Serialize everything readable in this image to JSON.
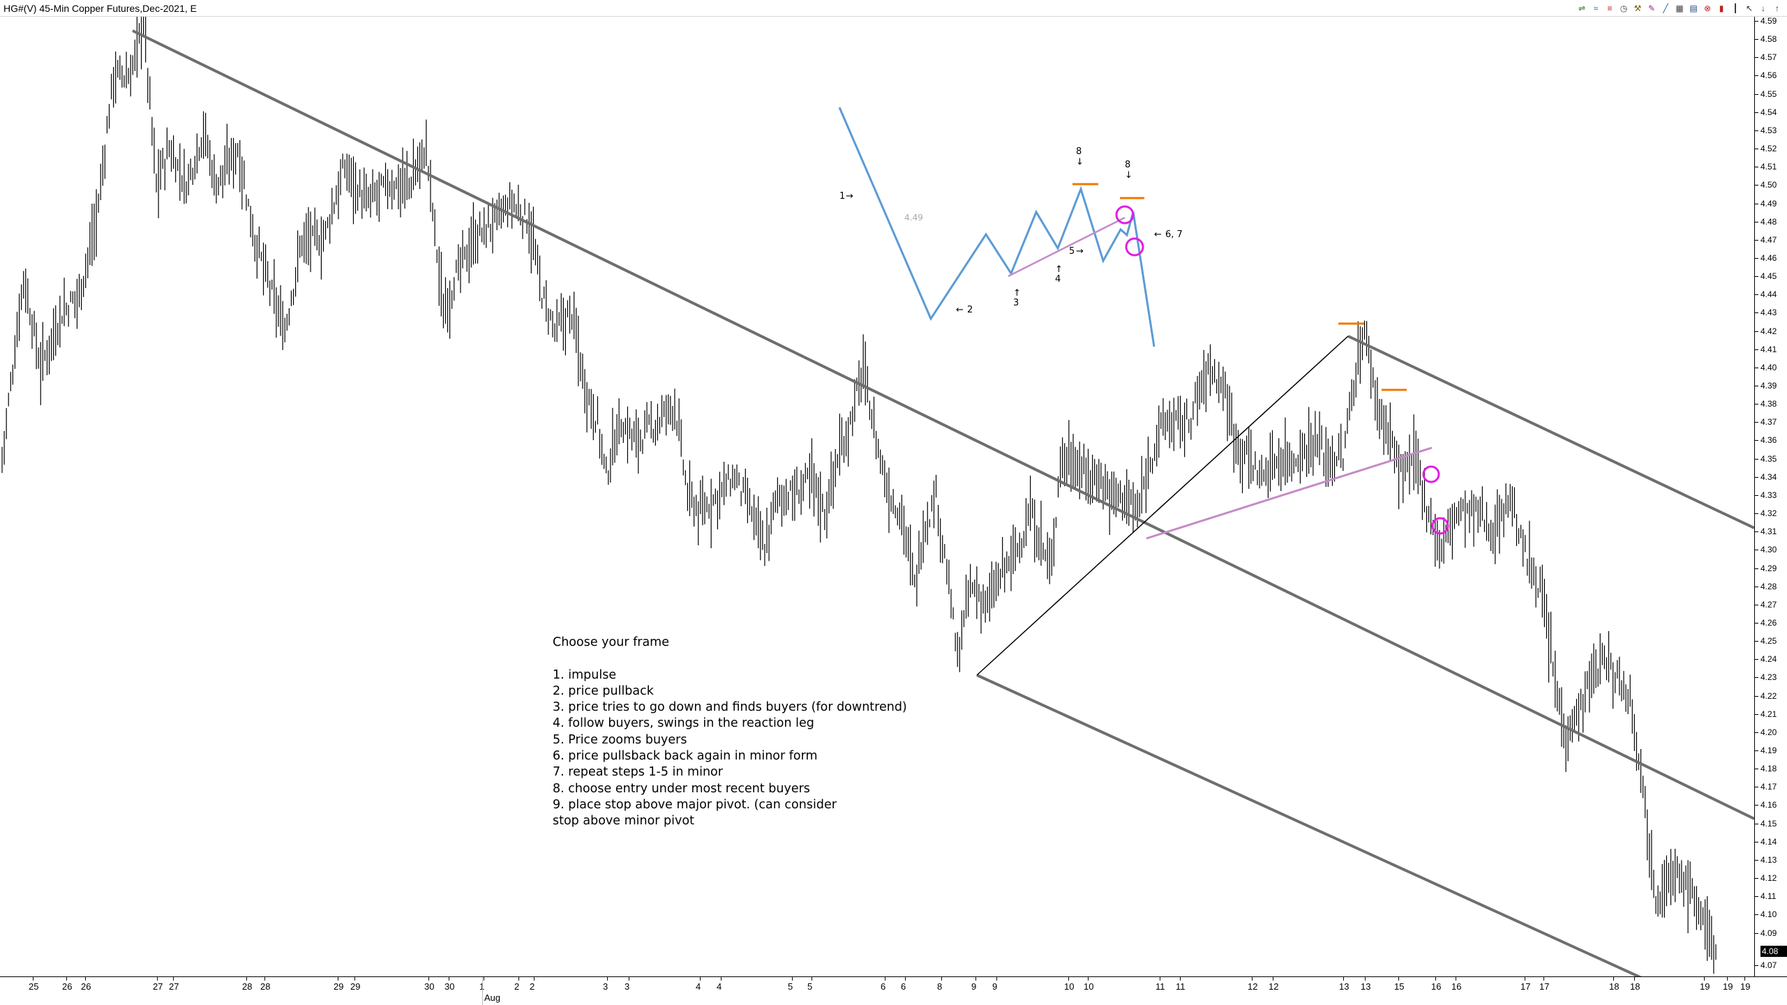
{
  "window": {
    "title": "HG#(V) 45-Min Copper Futures,Dec-2021, E"
  },
  "toolbar": {
    "icons": [
      "scale-icon",
      "waves-icon",
      "lines-icon",
      "timer-icon",
      "tools-icon",
      "pen-icon",
      "eraser-icon",
      "grid-icon",
      "text-icon",
      "delete-icon",
      "candle-icon",
      "bars-icon",
      "cursor-icon",
      "arrow-down-icon",
      "arrow-up-icon"
    ],
    "glyphs": [
      "⇌",
      "≈",
      "≡",
      "◷",
      "⚒",
      "✎",
      "╱",
      "▦",
      "▤",
      "⊗",
      "▮",
      "┃",
      "↖",
      "↓",
      "↑"
    ]
  },
  "annotations": {
    "notes": [
      "Choose your frame",
      "",
      "1. impulse",
      "2. price pullback",
      "3. price tries to go down and finds buyers (for downtrend)",
      "4. follow buyers, swings in the reaction leg",
      "5. Price zooms buyers",
      "6. price pullsback back again in minor form",
      "7. repeat steps 1-5 in minor",
      "8. choose entry under most recent buyers",
      "9. place stop above major pivot. (can consider",
      "stop above minor pivot"
    ],
    "diagram_labels": {
      "l1": "1",
      "l2": "2",
      "l3": "3",
      "l4": "4",
      "l5": "5",
      "l67": "6, 7",
      "l8a": "8",
      "l8b": "8",
      "lprice": "4.49"
    }
  },
  "colors": {
    "price_bars": "#000000",
    "trendlines": "#6e6e6e",
    "diagram": "#5b9bd5",
    "support": "#c58ac8",
    "circles": "#e020e0",
    "entry": "#f07800"
  },
  "y_axis": {
    "labels": [
      "4.59",
      "4.58",
      "4.57",
      "4.56",
      "4.55",
      "4.54",
      "4.53",
      "4.52",
      "4.51",
      "4.50",
      "4.49",
      "4.48",
      "4.47",
      "4.46",
      "4.45",
      "4.44",
      "4.43",
      "4.42",
      "4.41",
      "4.40",
      "4.39",
      "4.38",
      "4.37",
      "4.36",
      "4.35",
      "4.34",
      "4.33",
      "4.32",
      "4.31",
      "4.30",
      "4.29",
      "4.28",
      "4.27",
      "4.26",
      "4.25",
      "4.24",
      "4.23",
      "4.22",
      "4.21",
      "4.20",
      "4.19",
      "4.18",
      "4.17",
      "4.16",
      "4.15",
      "4.14",
      "4.13",
      "4.12",
      "4.11",
      "4.10",
      "4.09",
      "4.07"
    ],
    "last_price": "4.08"
  },
  "x_axis": {
    "labels": [
      "25",
      "26",
      "26",
      "27",
      "27",
      "28",
      "28",
      "29",
      "29",
      "30",
      "30",
      "1",
      "2",
      "2",
      "3",
      "3",
      "4",
      "4",
      "5",
      "5",
      "6",
      "6",
      "8",
      "9",
      "9",
      "10",
      "10",
      "11",
      "11",
      "12",
      "12",
      "13",
      "13",
      "15",
      "16",
      "16",
      "17",
      "17",
      "18",
      "18",
      "19",
      "19",
      "19"
    ],
    "month": "Aug"
  },
  "chart_data": {
    "type": "ohlc",
    "title": "HG#(V) 45-Min Copper Futures,Dec-2021, E",
    "ylim": [
      4.065,
      4.595
    ],
    "price_path": [
      [
        0,
        4.35
      ],
      [
        10,
        4.45
      ],
      [
        18,
        4.4
      ],
      [
        28,
        4.43
      ],
      [
        36,
        4.44
      ],
      [
        44,
        4.48
      ],
      [
        52,
        4.56
      ],
      [
        60,
        4.56
      ],
      [
        66,
        4.59
      ],
      [
        72,
        4.5
      ],
      [
        78,
        4.52
      ],
      [
        86,
        4.5
      ],
      [
        94,
        4.53
      ],
      [
        100,
        4.5
      ],
      [
        110,
        4.52
      ],
      [
        118,
        4.47
      ],
      [
        126,
        4.44
      ],
      [
        132,
        4.42
      ],
      [
        140,
        4.47
      ],
      [
        150,
        4.47
      ],
      [
        160,
        4.51
      ],
      [
        170,
        4.49
      ],
      [
        180,
        4.5
      ],
      [
        190,
        4.5
      ],
      [
        198,
        4.52
      ],
      [
        206,
        4.43
      ],
      [
        212,
        4.45
      ],
      [
        220,
        4.47
      ],
      [
        230,
        4.48
      ],
      [
        238,
        4.49
      ],
      [
        246,
        4.48
      ],
      [
        252,
        4.44
      ],
      [
        258,
        4.42
      ],
      [
        266,
        4.43
      ],
      [
        272,
        4.39
      ],
      [
        278,
        4.37
      ],
      [
        282,
        4.34
      ],
      [
        288,
        4.37
      ],
      [
        296,
        4.36
      ],
      [
        306,
        4.37
      ],
      [
        314,
        4.38
      ],
      [
        320,
        4.33
      ],
      [
        326,
        4.32
      ],
      [
        334,
        4.33
      ],
      [
        342,
        4.34
      ],
      [
        350,
        4.32
      ],
      [
        356,
        4.3
      ],
      [
        362,
        4.33
      ],
      [
        370,
        4.33
      ],
      [
        378,
        4.34
      ],
      [
        384,
        4.32
      ],
      [
        390,
        4.35
      ],
      [
        396,
        4.37
      ],
      [
        402,
        4.4
      ],
      [
        408,
        4.36
      ],
      [
        414,
        4.33
      ],
      [
        420,
        4.32
      ],
      [
        426,
        4.28
      ],
      [
        430,
        4.31
      ],
      [
        436,
        4.33
      ],
      [
        442,
        4.28
      ],
      [
        446,
        4.24
      ],
      [
        452,
        4.28
      ],
      [
        460,
        4.27
      ],
      [
        468,
        4.29
      ],
      [
        474,
        4.3
      ],
      [
        480,
        4.32
      ],
      [
        486,
        4.3
      ],
      [
        490,
        4.29
      ],
      [
        494,
        4.35
      ],
      [
        500,
        4.35
      ],
      [
        506,
        4.34
      ],
      [
        512,
        4.34
      ],
      [
        518,
        4.33
      ],
      [
        524,
        4.33
      ],
      [
        530,
        4.32
      ],
      [
        536,
        4.35
      ],
      [
        542,
        4.37
      ],
      [
        548,
        4.37
      ],
      [
        554,
        4.37
      ],
      [
        560,
        4.39
      ],
      [
        564,
        4.4
      ],
      [
        570,
        4.39
      ],
      [
        576,
        4.36
      ],
      [
        582,
        4.35
      ],
      [
        588,
        4.34
      ],
      [
        596,
        4.35
      ],
      [
        604,
        4.35
      ],
      [
        612,
        4.36
      ],
      [
        620,
        4.35
      ],
      [
        626,
        4.35
      ],
      [
        632,
        4.4
      ],
      [
        636,
        4.42
      ],
      [
        642,
        4.38
      ],
      [
        648,
        4.36
      ],
      [
        654,
        4.34
      ],
      [
        660,
        4.35
      ],
      [
        666,
        4.32
      ],
      [
        672,
        4.3
      ],
      [
        678,
        4.32
      ],
      [
        684,
        4.32
      ],
      [
        690,
        4.32
      ],
      [
        696,
        4.31
      ],
      [
        704,
        4.33
      ],
      [
        710,
        4.3
      ],
      [
        714,
        4.29
      ],
      [
        718,
        4.28
      ],
      [
        722,
        4.25
      ],
      [
        726,
        4.22
      ],
      [
        730,
        4.2
      ],
      [
        736,
        4.21
      ],
      [
        742,
        4.23
      ],
      [
        748,
        4.24
      ],
      [
        754,
        4.23
      ],
      [
        760,
        4.22
      ],
      [
        764,
        4.19
      ],
      [
        768,
        4.15
      ],
      [
        772,
        4.11
      ],
      [
        778,
        4.12
      ],
      [
        784,
        4.12
      ],
      [
        790,
        4.11
      ],
      [
        796,
        4.09
      ],
      [
        800,
        4.08
      ]
    ]
  }
}
